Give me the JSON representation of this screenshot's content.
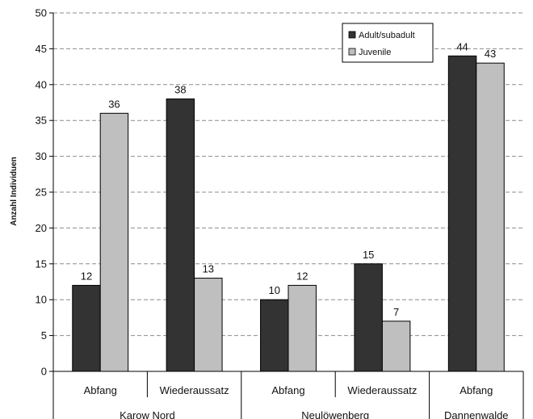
{
  "chart_data": {
    "type": "bar",
    "title": "",
    "xlabel": "",
    "ylabel": "Anzahl Individuen",
    "ylim": [
      0,
      50
    ],
    "yticks": [
      0,
      5,
      10,
      15,
      20,
      25,
      30,
      35,
      40,
      45,
      50
    ],
    "grid": "horizontal dashed",
    "legend_position": "top-right",
    "categories": [
      "Abfang",
      "Wiederaussatz",
      "Abfang",
      "Wiederaussatz",
      "Abfang"
    ],
    "groups": [
      {
        "label": "Karow Nord",
        "span": 2
      },
      {
        "label": "Neulöwenberg",
        "span": 2
      },
      {
        "label": "Dannenwalde",
        "span": 1
      }
    ],
    "series": [
      {
        "name": "Adult/subadult",
        "color": "#333333",
        "values": [
          12,
          38,
          10,
          15,
          44
        ]
      },
      {
        "name": "Juvenile",
        "color": "#bfbfbf",
        "values": [
          36,
          13,
          12,
          7,
          43
        ]
      }
    ]
  }
}
